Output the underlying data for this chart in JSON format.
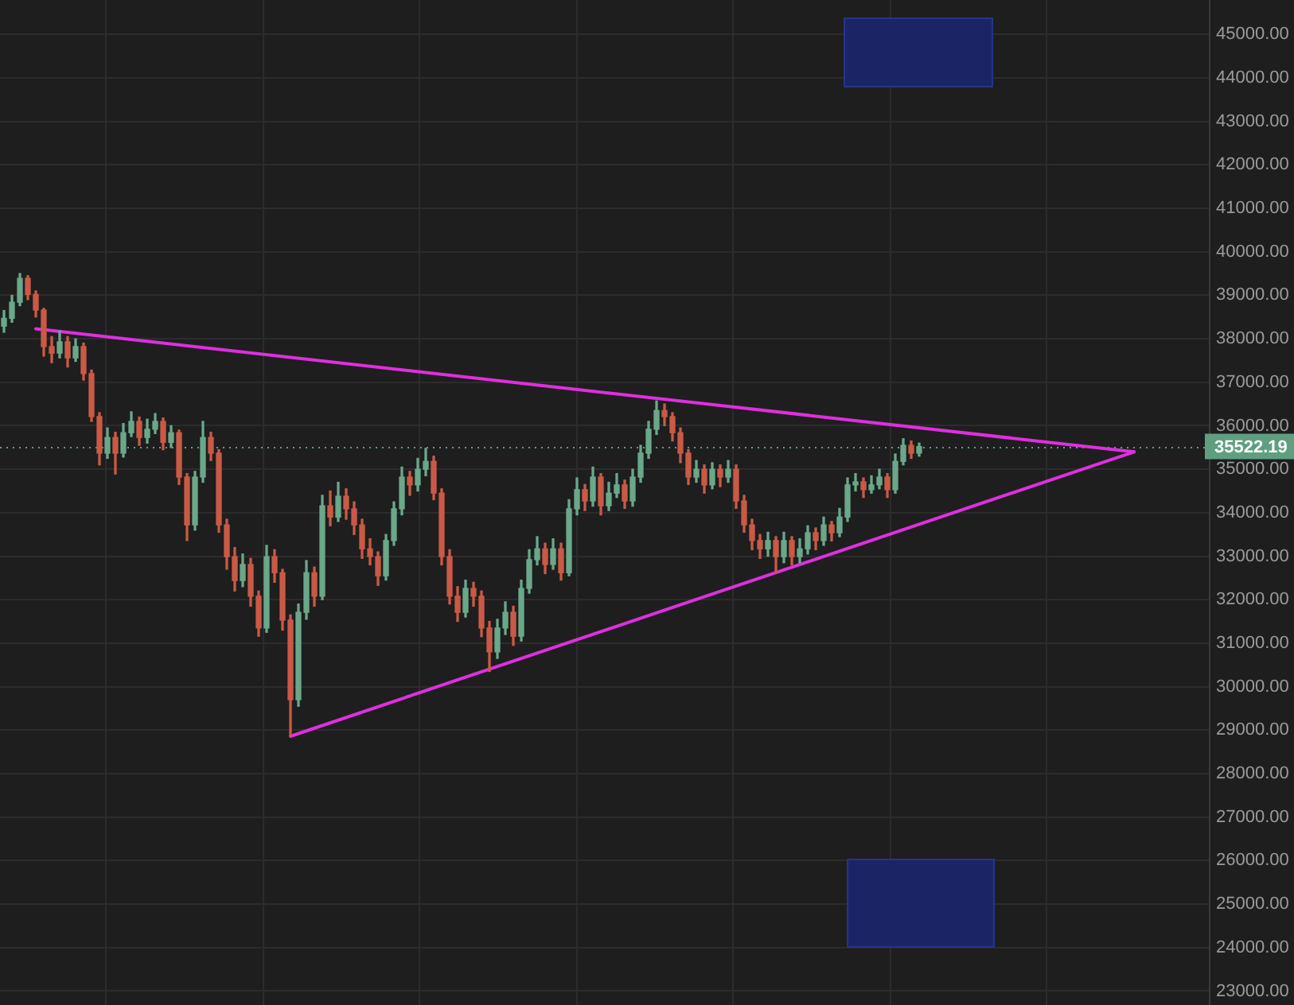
{
  "chart_data": {
    "type": "candlestick",
    "categories": [
      null,
      null,
      null,
      null,
      null,
      null,
      null,
      null,
      null,
      null,
      null,
      null,
      null,
      null,
      null,
      null,
      null,
      null,
      null,
      null,
      null,
      null,
      null,
      null,
      null,
      null,
      null,
      null,
      null,
      null,
      null,
      null,
      null,
      null,
      null,
      null,
      null,
      null,
      null,
      null,
      null,
      null,
      null,
      null,
      null,
      null,
      null,
      null,
      null,
      null,
      null,
      null,
      null,
      null,
      null,
      null,
      null,
      null,
      null,
      null,
      null,
      null,
      null,
      null,
      null,
      null,
      null,
      null,
      null,
      null,
      null,
      null,
      null,
      null,
      null,
      null,
      null,
      null,
      null,
      null,
      null,
      null,
      null,
      null,
      null,
      null,
      null,
      null,
      null,
      null,
      null,
      null,
      null,
      null,
      null,
      null,
      null,
      null,
      null,
      null,
      null,
      null,
      null,
      null,
      null,
      null,
      null,
      null,
      null,
      null,
      null,
      null,
      null,
      null,
      null,
      null,
      null,
      null,
      null,
      null,
      null,
      null,
      null,
      null,
      null,
      null,
      null,
      null,
      null,
      null,
      null,
      null,
      null,
      null,
      null,
      null,
      null,
      null,
      null,
      null,
      null,
      null,
      null,
      null,
      null,
      null,
      null,
      null,
      null,
      null,
      null,
      null
    ],
    "ohlc": [
      [
        38290,
        38650,
        38150,
        38470
      ],
      [
        38470,
        39000,
        38380,
        38840
      ],
      [
        38840,
        39500,
        38760,
        39390
      ],
      [
        39390,
        39450,
        38900,
        39020
      ],
      [
        39020,
        39100,
        38500,
        38660
      ],
      [
        38660,
        38700,
        37600,
        37820
      ],
      [
        37820,
        38050,
        37450,
        37670
      ],
      [
        37670,
        38180,
        37560,
        37930
      ],
      [
        37930,
        38050,
        37350,
        37560
      ],
      [
        37560,
        38000,
        37480,
        37820
      ],
      [
        37820,
        37900,
        37050,
        37200
      ],
      [
        37200,
        37280,
        36100,
        36210
      ],
      [
        36210,
        36300,
        35100,
        35370
      ],
      [
        35370,
        35950,
        35250,
        35730
      ],
      [
        35730,
        35850,
        34890,
        35370
      ],
      [
        35370,
        36050,
        35280,
        35840
      ],
      [
        35840,
        36320,
        35750,
        36100
      ],
      [
        36100,
        36200,
        35550,
        35730
      ],
      [
        35730,
        36150,
        35600,
        35920
      ],
      [
        35920,
        36280,
        35820,
        36100
      ],
      [
        36100,
        36180,
        35450,
        35620
      ],
      [
        35620,
        36000,
        35500,
        35840
      ],
      [
        35840,
        35900,
        34650,
        34820
      ],
      [
        34820,
        34900,
        33360,
        33720
      ],
      [
        33720,
        34950,
        33600,
        34820
      ],
      [
        34820,
        36100,
        34700,
        35730
      ],
      [
        35730,
        35850,
        35200,
        35370
      ],
      [
        35370,
        35450,
        33550,
        33720
      ],
      [
        33720,
        33850,
        32700,
        32990
      ],
      [
        32990,
        33200,
        32200,
        32440
      ],
      [
        32440,
        33050,
        32300,
        32810
      ],
      [
        32810,
        32950,
        31850,
        32080
      ],
      [
        32080,
        32200,
        31160,
        31350
      ],
      [
        31350,
        33250,
        31250,
        32990
      ],
      [
        32990,
        33150,
        32400,
        32620
      ],
      [
        32620,
        32700,
        31300,
        31530
      ],
      [
        31530,
        31650,
        28860,
        29700
      ],
      [
        29700,
        31900,
        29550,
        31710
      ],
      [
        31710,
        32900,
        31550,
        32620
      ],
      [
        32620,
        32750,
        31850,
        32080
      ],
      [
        32080,
        34400,
        32000,
        34160
      ],
      [
        34160,
        34500,
        33700,
        33900
      ],
      [
        33900,
        34700,
        33800,
        34380
      ],
      [
        34380,
        34550,
        33850,
        34090
      ],
      [
        34090,
        34250,
        33500,
        33720
      ],
      [
        33720,
        33850,
        32950,
        33170
      ],
      [
        33170,
        33400,
        32800,
        32990
      ],
      [
        32990,
        33100,
        32330,
        32550
      ],
      [
        32550,
        33500,
        32450,
        33360
      ],
      [
        33360,
        34250,
        33250,
        34090
      ],
      [
        34090,
        35050,
        33950,
        34820
      ],
      [
        34820,
        34950,
        34400,
        34640
      ],
      [
        34640,
        35250,
        34500,
        35000
      ],
      [
        35000,
        35480,
        34850,
        35180
      ],
      [
        35180,
        35300,
        34300,
        34450
      ],
      [
        34450,
        34550,
        32800,
        32990
      ],
      [
        32990,
        33150,
        31900,
        32080
      ],
      [
        32080,
        32300,
        31500,
        31710
      ],
      [
        31710,
        32450,
        31600,
        32260
      ],
      [
        32260,
        32400,
        31850,
        32080
      ],
      [
        32080,
        32200,
        31150,
        31350
      ],
      [
        31350,
        31500,
        30350,
        30800
      ],
      [
        30800,
        31550,
        30650,
        31350
      ],
      [
        31350,
        31950,
        31200,
        31710
      ],
      [
        31710,
        31850,
        30950,
        31160
      ],
      [
        31160,
        32450,
        31050,
        32260
      ],
      [
        32260,
        33150,
        32150,
        32920
      ],
      [
        32920,
        33450,
        32800,
        33170
      ],
      [
        33170,
        33300,
        32600,
        32810
      ],
      [
        32810,
        33400,
        32700,
        33170
      ],
      [
        33170,
        33300,
        32450,
        32620
      ],
      [
        32620,
        34300,
        32550,
        34090
      ],
      [
        34090,
        34800,
        33950,
        34530
      ],
      [
        34530,
        34650,
        34050,
        34270
      ],
      [
        34270,
        35050,
        34150,
        34820
      ],
      [
        34820,
        34900,
        33950,
        34160
      ],
      [
        34160,
        34700,
        34050,
        34450
      ],
      [
        34450,
        34900,
        34350,
        34640
      ],
      [
        34640,
        34750,
        34100,
        34270
      ],
      [
        34270,
        35000,
        34150,
        34820
      ],
      [
        34820,
        35550,
        34700,
        35370
      ],
      [
        35370,
        36100,
        35250,
        35920
      ],
      [
        35920,
        36570,
        35800,
        36350
      ],
      [
        36350,
        36500,
        36000,
        36210
      ],
      [
        36210,
        36300,
        35650,
        35840
      ],
      [
        35840,
        35950,
        35150,
        35370
      ],
      [
        35370,
        35450,
        34650,
        34820
      ],
      [
        34820,
        35200,
        34700,
        35000
      ],
      [
        35000,
        35100,
        34450,
        34640
      ],
      [
        34640,
        35150,
        34550,
        35000
      ],
      [
        35000,
        35100,
        34600,
        34820
      ],
      [
        34820,
        35200,
        34700,
        35000
      ],
      [
        35000,
        35100,
        34100,
        34270
      ],
      [
        34270,
        34400,
        33550,
        33720
      ],
      [
        33720,
        33850,
        33150,
        33360
      ],
      [
        33360,
        33500,
        32950,
        33170
      ],
      [
        33170,
        33550,
        33000,
        33360
      ],
      [
        33360,
        33450,
        32620,
        32990
      ],
      [
        32990,
        33550,
        32850,
        33360
      ],
      [
        33360,
        33450,
        32800,
        32990
      ],
      [
        32990,
        33400,
        32850,
        33170
      ],
      [
        33170,
        33700,
        33050,
        33540
      ],
      [
        33540,
        33650,
        33150,
        33360
      ],
      [
        33360,
        33900,
        33250,
        33720
      ],
      [
        33720,
        33800,
        33350,
        33540
      ],
      [
        33540,
        34100,
        33450,
        33900
      ],
      [
        33900,
        34800,
        33800,
        34640
      ],
      [
        34640,
        34900,
        34500,
        34710
      ],
      [
        34710,
        34800,
        34350,
        34530
      ],
      [
        34530,
        34850,
        34450,
        34640
      ],
      [
        34640,
        35000,
        34550,
        34820
      ],
      [
        34820,
        34900,
        34350,
        34530
      ],
      [
        34530,
        35350,
        34450,
        35180
      ],
      [
        35180,
        35700,
        35100,
        35550
      ],
      [
        35550,
        35650,
        35250,
        35370
      ],
      [
        35370,
        35600,
        35300,
        35522.19
      ],
      null,
      null,
      null,
      null,
      null,
      null,
      null,
      null,
      null,
      null,
      null,
      null,
      null,
      null,
      null,
      null,
      null,
      null,
      null,
      null,
      null,
      null,
      null,
      null,
      null,
      null,
      null,
      null,
      null,
      null,
      null,
      null,
      null,
      null,
      null,
      null
    ],
    "colors": [
      "#6aa88a",
      "#6aa88a",
      "#6aa88a",
      "#c95a46",
      "#c95a46",
      "#c95a46",
      "#c95a46",
      "#6aa88a",
      "#c95a46",
      "#6aa88a",
      "#c95a46",
      "#c95a46",
      "#c95a46",
      "#6aa88a",
      "#c95a46",
      "#6aa88a",
      "#6aa88a",
      "#c95a46",
      "#6aa88a",
      "#6aa88a",
      "#c95a46",
      "#6aa88a",
      "#c95a46",
      "#c95a46",
      "#6aa88a",
      "#6aa88a",
      "#c95a46",
      "#c95a46",
      "#c95a46",
      "#c95a46",
      "#6aa88a",
      "#c95a46",
      "#c95a46",
      "#6aa88a",
      "#c95a46",
      "#c95a46",
      "#c95a46",
      "#6aa88a",
      "#6aa88a",
      "#c95a46",
      "#6aa88a",
      "#c95a46",
      "#6aa88a",
      "#c95a46",
      "#c95a46",
      "#c95a46",
      "#c95a46",
      "#c95a46",
      "#6aa88a",
      "#6aa88a",
      "#6aa88a",
      "#c95a46",
      "#6aa88a",
      "#6aa88a",
      "#c95a46",
      "#c95a46",
      "#c95a46",
      "#c95a46",
      "#6aa88a",
      "#c95a46",
      "#c95a46",
      "#c95a46",
      "#6aa88a",
      "#6aa88a",
      "#c95a46",
      "#6aa88a",
      "#6aa88a",
      "#6aa88a",
      "#c95a46",
      "#6aa88a",
      "#c95a46",
      "#6aa88a",
      "#6aa88a",
      "#c95a46",
      "#6aa88a",
      "#c95a46",
      "#6aa88a",
      "#6aa88a",
      "#c95a46",
      "#6aa88a",
      "#6aa88a",
      "#6aa88a",
      "#6aa88a",
      "#c95a46",
      "#c95a46",
      "#c95a46",
      "#c95a46",
      "#6aa88a",
      "#c95a46",
      "#6aa88a",
      "#c95a46",
      "#6aa88a",
      "#c95a46",
      "#c95a46",
      "#c95a46",
      "#c95a46",
      "#6aa88a",
      "#c95a46",
      "#6aa88a",
      "#c95a46",
      "#6aa88a",
      "#6aa88a",
      "#c95a46",
      "#6aa88a",
      "#c95a46",
      "#6aa88a",
      "#6aa88a",
      "#6aa88a",
      "#c95a46",
      "#6aa88a",
      "#6aa88a",
      "#c95a46",
      "#6aa88a",
      "#6aa88a",
      "#c95a46",
      "#6aa88a",
      null,
      null,
      null,
      null,
      null,
      null,
      null,
      null,
      null,
      null,
      null,
      null,
      null,
      null,
      null,
      null,
      null,
      null,
      null,
      null,
      null,
      null,
      null,
      null,
      null,
      null,
      null,
      null,
      null,
      null,
      null,
      null,
      null,
      null,
      null,
      null
    ],
    "series": [
      {
        "type": "line",
        "color": "#df2fdf",
        "values": [
          null,
          null,
          null,
          null,
          38230,
          null,
          null,
          null,
          null,
          null,
          null,
          null,
          null,
          null,
          null,
          null,
          null,
          null,
          null,
          null,
          null,
          null,
          null,
          null,
          null,
          null,
          null,
          null,
          null,
          null,
          null,
          null,
          null,
          null,
          null,
          null,
          null,
          null,
          null,
          null,
          null,
          null,
          null,
          null,
          null,
          null,
          null,
          null,
          null,
          null,
          null,
          null,
          null,
          null,
          null,
          null,
          null,
          null,
          null,
          null,
          null,
          null,
          null,
          null,
          null,
          null,
          null,
          null,
          null,
          null,
          null,
          null,
          null,
          null,
          null,
          null,
          null,
          null,
          null,
          null,
          null,
          null,
          null,
          null,
          null,
          null,
          null,
          null,
          null,
          null,
          null,
          null,
          null,
          null,
          null,
          null,
          null,
          null,
          null,
          null,
          null,
          null,
          null,
          null,
          null,
          null,
          null,
          null,
          null,
          null,
          null,
          null,
          null,
          null,
          null,
          null,
          null,
          null,
          null,
          null,
          null,
          null,
          null,
          null,
          null,
          null,
          null,
          null,
          null,
          null,
          null,
          null,
          null,
          null,
          null,
          null,
          null,
          null,
          null,
          null,
          null,
          null,
          35400,
          null,
          null,
          null,
          null,
          null,
          null,
          null,
          null,
          null
        ]
      },
      {
        "type": "line",
        "color": "#df2fdf",
        "values": [
          null,
          null,
          null,
          null,
          null,
          null,
          null,
          null,
          null,
          null,
          null,
          null,
          null,
          null,
          null,
          null,
          null,
          null,
          null,
          null,
          null,
          null,
          null,
          null,
          null,
          null,
          null,
          null,
          null,
          null,
          null,
          null,
          null,
          null,
          null,
          null,
          28860,
          null,
          null,
          null,
          null,
          null,
          null,
          null,
          null,
          null,
          null,
          null,
          null,
          null,
          null,
          null,
          null,
          null,
          null,
          null,
          null,
          null,
          null,
          null,
          null,
          null,
          null,
          null,
          null,
          null,
          null,
          null,
          null,
          null,
          null,
          null,
          null,
          null,
          null,
          null,
          null,
          null,
          null,
          null,
          null,
          null,
          null,
          null,
          null,
          null,
          null,
          null,
          null,
          null,
          null,
          null,
          null,
          null,
          null,
          null,
          null,
          null,
          null,
          null,
          null,
          null,
          null,
          null,
          null,
          null,
          null,
          null,
          null,
          null,
          null,
          null,
          null,
          null,
          null,
          null,
          null,
          null,
          null,
          null,
          null,
          null,
          null,
          null,
          null,
          null,
          null,
          null,
          null,
          null,
          null,
          null,
          null,
          null,
          null,
          null,
          null,
          null,
          null,
          null,
          null,
          null,
          35400,
          null,
          null,
          null,
          null,
          null,
          null,
          null,
          null,
          null
        ]
      }
    ],
    "ylim": [
      22680,
      45790
    ],
    "yticks": [
      {
        "value": 23000,
        "label": "23000.00"
      },
      {
        "value": 24000,
        "label": "24000.00"
      },
      {
        "value": 25000,
        "label": "25000.00"
      },
      {
        "value": 26000,
        "label": "26000.00"
      },
      {
        "value": 27000,
        "label": "27000.00"
      },
      {
        "value": 28000,
        "label": "28000.00"
      },
      {
        "value": 29000,
        "label": "29000.00"
      },
      {
        "value": 30000,
        "label": "30000.00"
      },
      {
        "value": 31000,
        "label": "31000.00"
      },
      {
        "value": 32000,
        "label": "32000.00"
      },
      {
        "value": 33000,
        "label": "33000.00"
      },
      {
        "value": 34000,
        "label": "34000.00"
      },
      {
        "value": 35000,
        "label": "35000.00"
      },
      {
        "value": 36000,
        "label": "36000.00"
      },
      {
        "value": 37000,
        "label": "37000.00"
      },
      {
        "value": 38000,
        "label": "38000.00"
      },
      {
        "value": 39000,
        "label": "39000.00"
      },
      {
        "value": 40000,
        "label": "40000.00"
      },
      {
        "value": 41000,
        "label": "41000.00"
      },
      {
        "value": 42000,
        "label": "42000.00"
      },
      {
        "value": 43000,
        "label": "43000.00"
      },
      {
        "value": 44000,
        "label": "44000.00"
      },
      {
        "value": 45000,
        "label": "45000.00"
      }
    ],
    "ref_lines": [
      {
        "axis": "y",
        "value": 35522.19,
        "label": "35522.19",
        "color": "#5f9f7f",
        "line_style": "dotted"
      }
    ],
    "grid": true,
    "tick_labels": "y",
    "marker": "none"
  }
}
